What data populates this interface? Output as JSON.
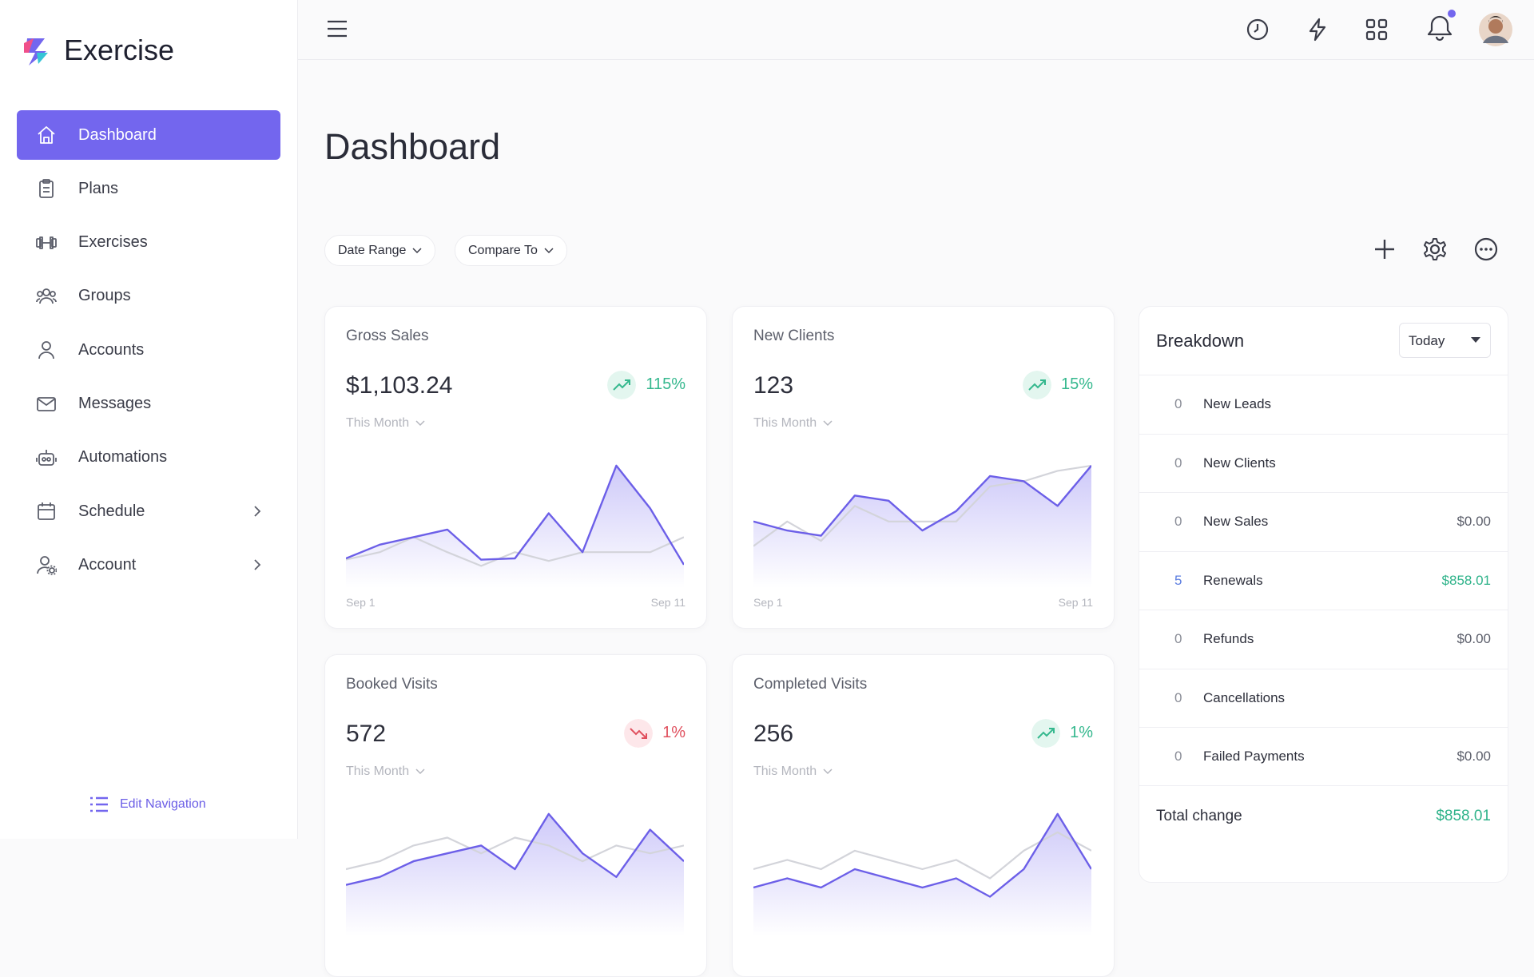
{
  "brand": "Exercise",
  "nav": [
    {
      "label": "Dashboard",
      "active": true
    },
    {
      "label": "Plans"
    },
    {
      "label": "Exercises"
    },
    {
      "label": "Groups"
    },
    {
      "label": "Accounts"
    },
    {
      "label": "Messages"
    },
    {
      "label": "Automations"
    },
    {
      "label": "Schedule",
      "submenu": true
    },
    {
      "label": "Account",
      "submenu": true
    }
  ],
  "edit_navigation": "Edit Navigation",
  "page_title": "Dashboard",
  "filters": [
    "Date Range",
    "Compare To"
  ],
  "cards": [
    {
      "title": "Gross Sales",
      "value": "$1,103.24",
      "change": "115%",
      "trend": "up",
      "period": "This Month",
      "x_start": "Sep 1",
      "x_end": "Sep 11",
      "current": [
        14,
        25,
        31,
        37,
        13,
        14,
        50,
        19,
        88,
        54,
        9
      ],
      "previous": [
        13,
        19,
        31,
        19,
        8,
        19,
        12,
        19,
        19,
        19,
        31
      ]
    },
    {
      "title": "New Clients",
      "value": "123",
      "change": "15%",
      "trend": "up",
      "period": "This Month",
      "x_start": "Sep 1",
      "x_end": "Sep 11",
      "current": [
        42,
        35,
        31,
        62,
        58,
        35,
        50,
        77,
        73,
        54,
        85
      ],
      "previous": [
        23,
        42,
        27,
        54,
        42,
        42,
        42,
        69,
        73,
        81,
        85
      ]
    },
    {
      "title": "Booked Visits",
      "value": "572",
      "change": "1%",
      "trend": "down",
      "period": "This Month",
      "current": [
        5,
        6,
        8,
        9,
        10,
        7,
        14,
        9,
        6,
        12,
        8
      ],
      "previous": [
        7,
        8,
        10,
        11,
        9,
        11,
        10,
        8,
        10,
        9,
        10
      ]
    },
    {
      "title": "Completed Visits",
      "value": "256",
      "change": "1%",
      "trend": "up",
      "period": "This Month",
      "current": [
        4,
        5,
        4,
        6,
        5,
        4,
        5,
        3,
        6,
        12,
        6
      ],
      "previous": [
        6,
        7,
        6,
        8,
        7,
        6,
        7,
        5,
        8,
        10,
        8
      ]
    }
  ],
  "breakdown": {
    "title": "Breakdown",
    "period": "Today",
    "rows": [
      {
        "count": 0,
        "label": "New Leads"
      },
      {
        "count": 0,
        "label": "New Clients"
      },
      {
        "count": 0,
        "label": "New Sales",
        "amount": "$0.00"
      },
      {
        "count": 5,
        "label": "Renewals",
        "amount": "$858.01"
      },
      {
        "count": 0,
        "label": "Refunds",
        "amount": "$0.00"
      },
      {
        "count": 0,
        "label": "Cancellations"
      },
      {
        "count": 0,
        "label": "Failed Payments",
        "amount": "$0.00"
      }
    ],
    "total_label": "Total change",
    "total": "$858.01"
  }
}
